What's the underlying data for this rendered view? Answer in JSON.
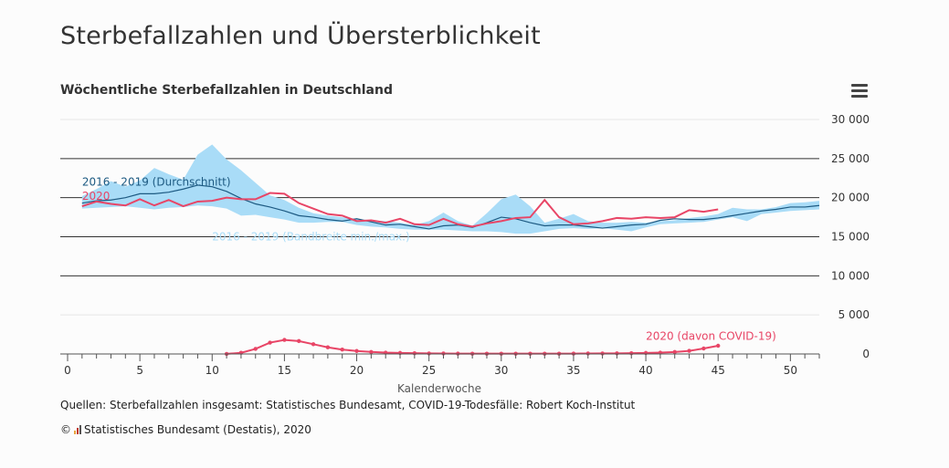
{
  "page": {
    "title": "Sterbefallzahlen und Übersterblichkeit",
    "sources": "Quellen: Sterbefallzahlen insgesamt: Statistisches Bundesamt, COVID-19-Todesfälle: Robert Koch-Institut",
    "copyright_symbol": "©",
    "copyright": "Statistisches Bundesamt (Destatis), 2020"
  },
  "icons": {
    "menu": "hamburger-menu-icon",
    "logo": "destatis-logo-icon"
  },
  "chart_data": {
    "type": "line",
    "title": "Wöchentliche Sterbefallzahlen in Deutschland",
    "xlabel": "Kalenderwoche",
    "ylabel": "",
    "xlim": [
      0,
      52
    ],
    "ylim": [
      0,
      30000
    ],
    "x_ticks": [
      0,
      5,
      10,
      15,
      20,
      25,
      30,
      35,
      40,
      45,
      50
    ],
    "y_ticks": [
      0,
      5000,
      10000,
      15000,
      20000,
      25000,
      30000
    ],
    "y_tick_labels": [
      "0",
      "5 000",
      "10 000",
      "15 000",
      "20 000",
      "25 000",
      "30 000"
    ],
    "grid": true,
    "colors": {
      "band": "#a9dcf7",
      "average": "#1d5a82",
      "year2020": "#e84566",
      "covid": "#e84566",
      "axis": "#555555"
    },
    "series": [
      {
        "name": "2016 - 2019 (Bandbreite min./max.)",
        "kind": "range",
        "x": [
          1,
          2,
          3,
          4,
          5,
          6,
          7,
          8,
          9,
          10,
          11,
          12,
          13,
          14,
          15,
          16,
          17,
          18,
          19,
          20,
          21,
          22,
          23,
          24,
          25,
          26,
          27,
          28,
          29,
          30,
          31,
          32,
          33,
          34,
          35,
          36,
          37,
          38,
          39,
          40,
          41,
          42,
          43,
          44,
          45,
          46,
          47,
          48,
          49,
          50,
          51,
          52
        ],
        "low": [
          18600,
          18700,
          18800,
          18900,
          18700,
          18500,
          18700,
          18800,
          19000,
          18900,
          18600,
          17700,
          17800,
          17500,
          17200,
          16800,
          16800,
          16900,
          16900,
          16500,
          16300,
          16200,
          16000,
          15900,
          15900,
          15900,
          15800,
          15700,
          15700,
          15600,
          15400,
          15400,
          15700,
          16000,
          16100,
          16000,
          16100,
          15900,
          15700,
          16200,
          16600,
          16700,
          16800,
          16900,
          17200,
          17500,
          17000,
          17900,
          18100,
          18300,
          18400,
          18500
        ],
        "high": [
          20200,
          21100,
          22100,
          21400,
          22200,
          23800,
          23000,
          22300,
          25500,
          26800,
          24900,
          23500,
          21900,
          20300,
          19700,
          18700,
          18000,
          17700,
          17500,
          17300,
          17100,
          17000,
          16800,
          16500,
          17000,
          18100,
          17000,
          16400,
          18000,
          19800,
          20400,
          18900,
          16800,
          17300,
          17900,
          17000,
          16800,
          16800,
          16900,
          16800,
          17000,
          17100,
          17400,
          17600,
          17900,
          18700,
          18500,
          18500,
          18800,
          19300,
          19400,
          19600
        ]
      },
      {
        "name": "2016 - 2019 (Durchschnitt)",
        "kind": "line",
        "x": [
          1,
          2,
          3,
          4,
          5,
          6,
          7,
          8,
          9,
          10,
          11,
          12,
          13,
          14,
          15,
          16,
          17,
          18,
          19,
          20,
          21,
          22,
          23,
          24,
          25,
          26,
          27,
          28,
          29,
          30,
          31,
          32,
          33,
          34,
          35,
          36,
          37,
          38,
          39,
          40,
          41,
          42,
          43,
          44,
          45,
          46,
          47,
          48,
          49,
          50,
          51,
          52
        ],
        "values": [
          19300,
          19600,
          19700,
          20000,
          20500,
          20500,
          20700,
          21100,
          21600,
          21400,
          20800,
          19900,
          19200,
          18800,
          18300,
          17700,
          17500,
          17200,
          17000,
          17300,
          16900,
          16500,
          16600,
          16300,
          16000,
          16400,
          16500,
          16200,
          16800,
          17500,
          17300,
          16800,
          16400,
          16500,
          16500,
          16300,
          16100,
          16300,
          16500,
          16600,
          17100,
          17300,
          17200,
          17200,
          17400,
          17700,
          18000,
          18300,
          18500,
          18800,
          18800,
          19000
        ]
      },
      {
        "name": "2020",
        "kind": "line",
        "x": [
          1,
          2,
          3,
          4,
          5,
          6,
          7,
          8,
          9,
          10,
          11,
          12,
          13,
          14,
          15,
          16,
          17,
          18,
          19,
          20,
          21,
          22,
          23,
          24,
          25,
          26,
          27,
          28,
          29,
          30,
          31,
          32,
          33,
          34,
          35,
          36,
          37,
          38,
          39,
          40,
          41,
          42,
          43,
          44,
          45
        ],
        "values": [
          18900,
          19500,
          19200,
          19000,
          19800,
          19000,
          19700,
          18900,
          19500,
          19600,
          20000,
          19800,
          19800,
          20600,
          20500,
          19300,
          18600,
          17900,
          17700,
          17000,
          17100,
          16800,
          17300,
          16600,
          16500,
          17300,
          16600,
          16300,
          16700,
          17000,
          17400,
          17500,
          19700,
          17500,
          16600,
          16700,
          17000,
          17400,
          17300,
          17500,
          17400,
          17500,
          18400,
          18200,
          18500
        ]
      },
      {
        "name": "2020 (davon COVID-19)",
        "kind": "line-markers",
        "x": [
          11,
          12,
          13,
          14,
          15,
          16,
          17,
          18,
          19,
          20,
          21,
          22,
          23,
          24,
          25,
          26,
          27,
          28,
          29,
          30,
          31,
          32,
          33,
          34,
          35,
          36,
          37,
          38,
          39,
          40,
          41,
          42,
          43,
          44,
          45
        ],
        "values": [
          10,
          150,
          650,
          1450,
          1800,
          1650,
          1250,
          850,
          560,
          380,
          260,
          170,
          130,
          100,
          70,
          60,
          50,
          40,
          40,
          40,
          40,
          40,
          40,
          40,
          50,
          60,
          70,
          80,
          100,
          130,
          170,
          250,
          400,
          700,
          1050
        ]
      }
    ],
    "annotations": [
      {
        "text": "2016 - 2019 (Durchschnitt)",
        "color": "#1d5a82",
        "x": 1,
        "y": 22000
      },
      {
        "text": "2020",
        "color": "#e84566",
        "x": 1,
        "y": 20200
      },
      {
        "text": "2016 - 2019 (Bandbreite min./max.)",
        "color": "#a9dcf7",
        "x": 10,
        "y": 15000
      },
      {
        "text": "2020 (davon COVID-19)",
        "color": "#e84566",
        "x": 40,
        "y": 2300
      }
    ]
  }
}
